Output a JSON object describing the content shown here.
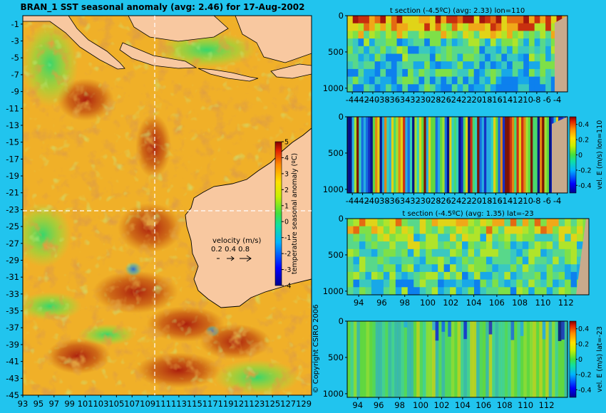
{
  "background": "#21c4ee",
  "colors": {
    "land": "#f8c8a0",
    "land_section": "#c8aa8c",
    "coast": "#000000",
    "guide": "#ffffff"
  },
  "map": {
    "title": "BRAN_1  SST seasonal anomaly  (avg: 2.46)  for 17-Aug-2002",
    "lat_ticks": [
      "-1",
      "-3",
      "-5",
      "-7",
      "-9",
      "-11",
      "-13",
      "-15",
      "-17",
      "-19",
      "-21",
      "-23",
      "-25",
      "-27",
      "-29",
      "-31",
      "-33",
      "-35",
      "-37",
      "-39",
      "-41",
      "-43",
      "-45"
    ],
    "lon_ticks": [
      "93",
      "95",
      "97",
      "99",
      "101",
      "103",
      "105",
      "107",
      "109",
      "111",
      "113",
      "115",
      "117",
      "119",
      "121",
      "123",
      "125",
      "127",
      "129"
    ],
    "colorbar_label": "temperature seasonal anomaly (ºC)",
    "colorbar_ticks": [
      "5",
      "4",
      "3",
      "2",
      "1",
      "0",
      "-1",
      "-2",
      "-3",
      "-4"
    ],
    "velocity_title": "velocity (m/s)",
    "velocity_values": "0.2 0.4 0.8",
    "copyright": "© Copyright CSIRO 2006"
  },
  "chart_data": [
    {
      "type": "heatmap",
      "title": "BRAN_1  SST seasonal anomaly  (avg: 2.46)  for 17-Aug-2002",
      "x_ticks": [
        "93",
        "95",
        "97",
        "99",
        "101",
        "103",
        "105",
        "107",
        "109",
        "111",
        "113",
        "115",
        "117",
        "119",
        "121",
        "123",
        "125",
        "127",
        "129"
      ],
      "y_ticks": [
        "-1",
        "-3",
        "-5",
        "-7",
        "-9",
        "-11",
        "-13",
        "-15",
        "-17",
        "-19",
        "-21",
        "-23",
        "-25",
        "-27",
        "-29",
        "-31",
        "-33",
        "-35",
        "-37",
        "-39",
        "-41",
        "-43",
        "-45"
      ],
      "xlim": [
        93,
        130
      ],
      "ylim": [
        -45,
        0
      ],
      "colorbar": {
        "label": "temperature seasonal anomaly (ºC)",
        "range": [
          -4,
          5
        ]
      },
      "guides": {
        "lon": 110,
        "lat": -23
      }
    },
    {
      "type": "heatmap",
      "title": "t section (-4.5ºC)  (avg: 2.33)  lon=110",
      "x_ticks": [
        "-44",
        "-42",
        "-40",
        "-38",
        "-36",
        "-34",
        "-32",
        "-30",
        "-28",
        "-26",
        "-24",
        "-22",
        "-20",
        "-18",
        "-16",
        "-14",
        "-12",
        "-10",
        "-8",
        "-6",
        "-4"
      ],
      "y_ticks": [
        "0",
        "500",
        "1000"
      ],
      "xlim": [
        -45,
        -2
      ],
      "ylim": [
        1050,
        0
      ]
    },
    {
      "type": "heatmap",
      "title": "",
      "x_ticks": [
        "-44",
        "-42",
        "-40",
        "-38",
        "-36",
        "-34",
        "-32",
        "-30",
        "-28",
        "-26",
        "-24",
        "-22",
        "-20",
        "-18",
        "-16",
        "-14",
        "-12",
        "-10",
        "-8",
        "-6",
        "-4"
      ],
      "y_ticks": [
        "0",
        "500",
        "1000"
      ],
      "xlim": [
        -45,
        -2
      ],
      "ylim": [
        1050,
        0
      ],
      "colorbar": {
        "label": "vel. E (m/s) lon=110",
        "ticks": [
          "0.4",
          "0.2",
          "0",
          "-0.2",
          "-0.4"
        ],
        "range": [
          -0.5,
          0.5
        ]
      }
    },
    {
      "type": "heatmap",
      "title": "t section (-4.5ºC)  (avg: 1.35)  lat=-23",
      "x_ticks": [
        "94",
        "96",
        "98",
        "100",
        "102",
        "104",
        "106",
        "108",
        "110",
        "112"
      ],
      "y_ticks": [
        "0",
        "500",
        "1000"
      ],
      "xlim": [
        93,
        114
      ],
      "ylim": [
        1050,
        0
      ]
    },
    {
      "type": "heatmap",
      "title": "",
      "x_ticks": [
        "94",
        "96",
        "98",
        "100",
        "102",
        "104",
        "106",
        "108",
        "110",
        "112"
      ],
      "y_ticks": [
        "0",
        "500",
        "1000"
      ],
      "xlim": [
        93,
        114
      ],
      "ylim": [
        1050,
        0
      ],
      "colorbar": {
        "label": "vel. E (m/s) lat=-23",
        "ticks": [
          "0.4",
          "0.2",
          "0",
          "-0.2",
          "-0.4"
        ],
        "range": [
          -0.5,
          0.5
        ]
      }
    }
  ]
}
